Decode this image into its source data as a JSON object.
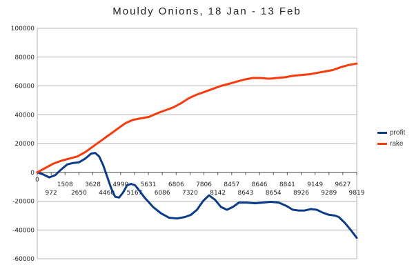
{
  "chart_data": {
    "type": "line",
    "title": "Mouldy Onions, 18 Jan - 13 Feb",
    "xlabel": "",
    "ylabel": "",
    "ylim": [
      -60000,
      100000
    ],
    "yticks": [
      100000,
      80000,
      60000,
      40000,
      20000,
      0,
      -20000,
      -40000,
      -60000
    ],
    "x_tick_labels": [
      "0",
      "972",
      "1508",
      "2650",
      "3628",
      "4460",
      "4990",
      "5167",
      "5631",
      "6086",
      "6806",
      "7320",
      "7806",
      "8142",
      "8457",
      "8643",
      "8646",
      "8654",
      "8841",
      "8926",
      "9149",
      "9289",
      "9627",
      "9819"
    ],
    "grid": true,
    "legend_position": "right",
    "series": [
      {
        "name": "profit",
        "color": "#0b3c8c",
        "points": [
          [
            0,
            0
          ],
          [
            3,
            -1500
          ],
          [
            6,
            -3500
          ],
          [
            9,
            -2000
          ],
          [
            12,
            2000
          ],
          [
            15,
            5500
          ],
          [
            18,
            6500
          ],
          [
            21,
            7000
          ],
          [
            24,
            9500
          ],
          [
            27,
            13000
          ],
          [
            29,
            13500
          ],
          [
            31,
            11000
          ],
          [
            33,
            5000
          ],
          [
            35,
            -3000
          ],
          [
            37,
            -11000
          ],
          [
            39,
            -17000
          ],
          [
            41,
            -17500
          ],
          [
            43,
            -14000
          ],
          [
            45,
            -9000
          ],
          [
            47,
            -8000
          ],
          [
            49,
            -9000
          ],
          [
            51,
            -12500
          ],
          [
            54,
            -18000
          ],
          [
            58,
            -24000
          ],
          [
            62,
            -28500
          ],
          [
            66,
            -31500
          ],
          [
            70,
            -32000
          ],
          [
            74,
            -31000
          ],
          [
            77,
            -29500
          ],
          [
            80,
            -26000
          ],
          [
            83,
            -20000
          ],
          [
            86,
            -16000
          ],
          [
            89,
            -19000
          ],
          [
            92,
            -24000
          ],
          [
            95,
            -26000
          ],
          [
            98,
            -24000
          ],
          [
            101,
            -21000
          ],
          [
            105,
            -21000
          ],
          [
            109,
            -21500
          ],
          [
            113,
            -21000
          ],
          [
            117,
            -20500
          ],
          [
            121,
            -21000
          ],
          [
            125,
            -23500
          ],
          [
            128,
            -26000
          ],
          [
            131,
            -26500
          ],
          [
            134,
            -26500
          ],
          [
            137,
            -25500
          ],
          [
            140,
            -26000
          ],
          [
            143,
            -28000
          ],
          [
            146,
            -29500
          ],
          [
            149,
            -30000
          ],
          [
            151,
            -31000
          ],
          [
            154,
            -35000
          ],
          [
            157,
            -40000
          ],
          [
            160,
            -45500
          ]
        ]
      },
      {
        "name": "rake",
        "color": "#ff3a0a",
        "points": [
          [
            0,
            0
          ],
          [
            4,
            3000
          ],
          [
            8,
            6000
          ],
          [
            12,
            8000
          ],
          [
            16,
            9500
          ],
          [
            20,
            11000
          ],
          [
            24,
            14000
          ],
          [
            28,
            18000
          ],
          [
            32,
            22000
          ],
          [
            36,
            26000
          ],
          [
            40,
            30000
          ],
          [
            44,
            34000
          ],
          [
            48,
            36500
          ],
          [
            52,
            37500
          ],
          [
            56,
            38500
          ],
          [
            60,
            41000
          ],
          [
            64,
            43000
          ],
          [
            68,
            45000
          ],
          [
            72,
            48000
          ],
          [
            76,
            51500
          ],
          [
            80,
            54000
          ],
          [
            84,
            56000
          ],
          [
            88,
            58000
          ],
          [
            92,
            60000
          ],
          [
            96,
            61500
          ],
          [
            100,
            63000
          ],
          [
            104,
            64500
          ],
          [
            108,
            65500
          ],
          [
            112,
            65500
          ],
          [
            116,
            65000
          ],
          [
            120,
            65500
          ],
          [
            124,
            66000
          ],
          [
            128,
            67000
          ],
          [
            132,
            67500
          ],
          [
            136,
            68000
          ],
          [
            140,
            69000
          ],
          [
            144,
            70000
          ],
          [
            148,
            71000
          ],
          [
            152,
            73000
          ],
          [
            156,
            74500
          ],
          [
            160,
            75500
          ]
        ]
      }
    ]
  }
}
